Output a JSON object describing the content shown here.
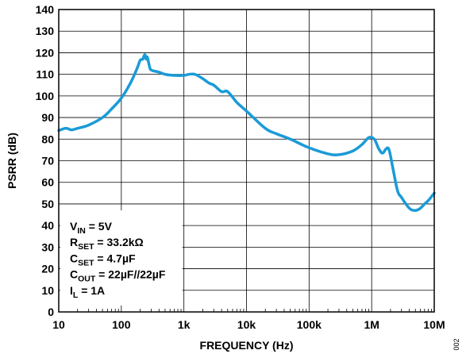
{
  "chart_data": {
    "type": "line",
    "xlabel": "FREQUENCY (Hz)",
    "ylabel": "PSRR (dB)",
    "x_scale": "log",
    "xlim": [
      10,
      10000000
    ],
    "ylim": [
      0,
      140
    ],
    "grid": true,
    "x_ticks": [
      {
        "value": 10,
        "label": "10"
      },
      {
        "value": 100,
        "label": "100"
      },
      {
        "value": 1000,
        "label": "1k"
      },
      {
        "value": 10000,
        "label": "10k"
      },
      {
        "value": 100000,
        "label": "100k"
      },
      {
        "value": 1000000,
        "label": "1M"
      },
      {
        "value": 10000000,
        "label": "10M"
      }
    ],
    "y_ticks": [
      0,
      10,
      20,
      30,
      40,
      50,
      60,
      70,
      80,
      90,
      100,
      110,
      120,
      130,
      140
    ],
    "line_color": "#1a9bd7",
    "series": [
      {
        "x": [
          10,
          13,
          16,
          20,
          30,
          50,
          70,
          100,
          140,
          180,
          200,
          220,
          230,
          240,
          250,
          260,
          280,
          300,
          400,
          500,
          700,
          1000,
          1200,
          1500,
          2000,
          2500,
          3000,
          4000,
          5000,
          7000,
          10000,
          20000,
          30000,
          50000,
          100000,
          200000,
          300000,
          500000,
          700000,
          900000,
          1100000,
          1300000,
          1500000,
          1700000,
          1900000,
          2200000,
          2600000,
          3000000,
          4000000,
          5000000,
          6000000,
          7000000,
          8000000,
          10000000
        ],
        "y": [
          84,
          85,
          84.3,
          85,
          86.5,
          90,
          94,
          99,
          106,
          113,
          116.5,
          117,
          118.5,
          119,
          117,
          118,
          114,
          112,
          111,
          110,
          109.5,
          109.5,
          110,
          110,
          108,
          106,
          105,
          102,
          102,
          97,
          93,
          85,
          82.5,
          80,
          76,
          73.2,
          72.8,
          74.5,
          77.5,
          80.7,
          80,
          75.5,
          73.5,
          75.5,
          75,
          66,
          56,
          53,
          48,
          47,
          48,
          50,
          51.5,
          55
        ]
      }
    ],
    "annotation": {
      "lines": [
        {
          "main": "V",
          "sub": "IN",
          "rest": " = 5V"
        },
        {
          "main": "R",
          "sub": "SET",
          "rest": " = 33.2kΩ"
        },
        {
          "main": "C",
          "sub": "SET",
          "rest": " = 4.7µF"
        },
        {
          "main": "C",
          "sub": "OUT",
          "rest": " = 22µF//22µF"
        },
        {
          "main": "I",
          "sub": "L",
          "rest": " = 1A"
        }
      ]
    }
  },
  "figure_id": "002"
}
